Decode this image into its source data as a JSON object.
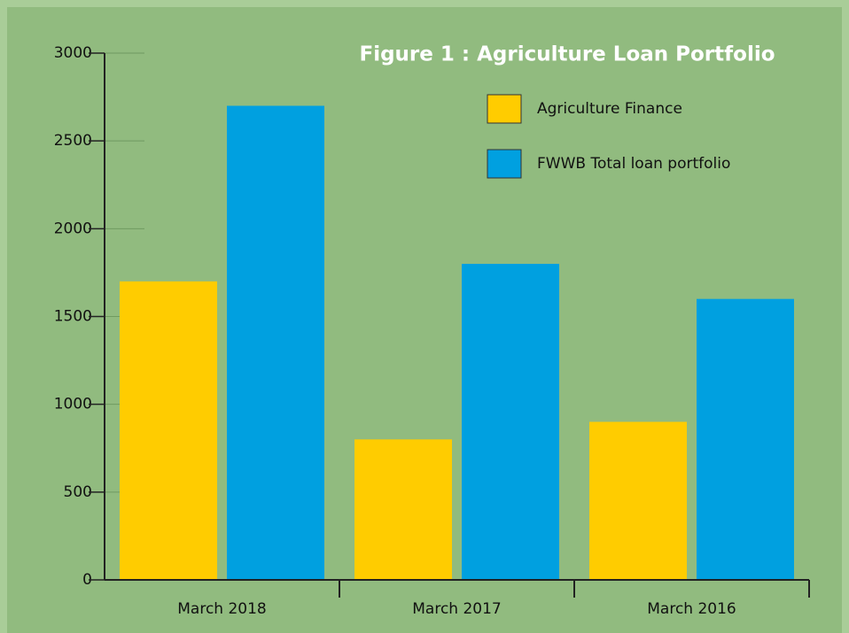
{
  "chart_data": {
    "type": "bar",
    "title": "Figure 1 : Agriculture Loan Portfolio",
    "categories": [
      "March 2018",
      "March 2017",
      "March 2016"
    ],
    "series": [
      {
        "name": "Agriculture Finance",
        "color": "#ffcc00",
        "values": [
          1700,
          800,
          900
        ]
      },
      {
        "name": "FWWB Total loan portfolio",
        "color": "#00a0e0",
        "values": [
          2700,
          1800,
          1600
        ]
      }
    ],
    "ylim": [
      0,
      3000
    ],
    "yticks": [
      0,
      500,
      1000,
      1500,
      2000,
      2500,
      3000
    ],
    "legend": "top-right"
  }
}
